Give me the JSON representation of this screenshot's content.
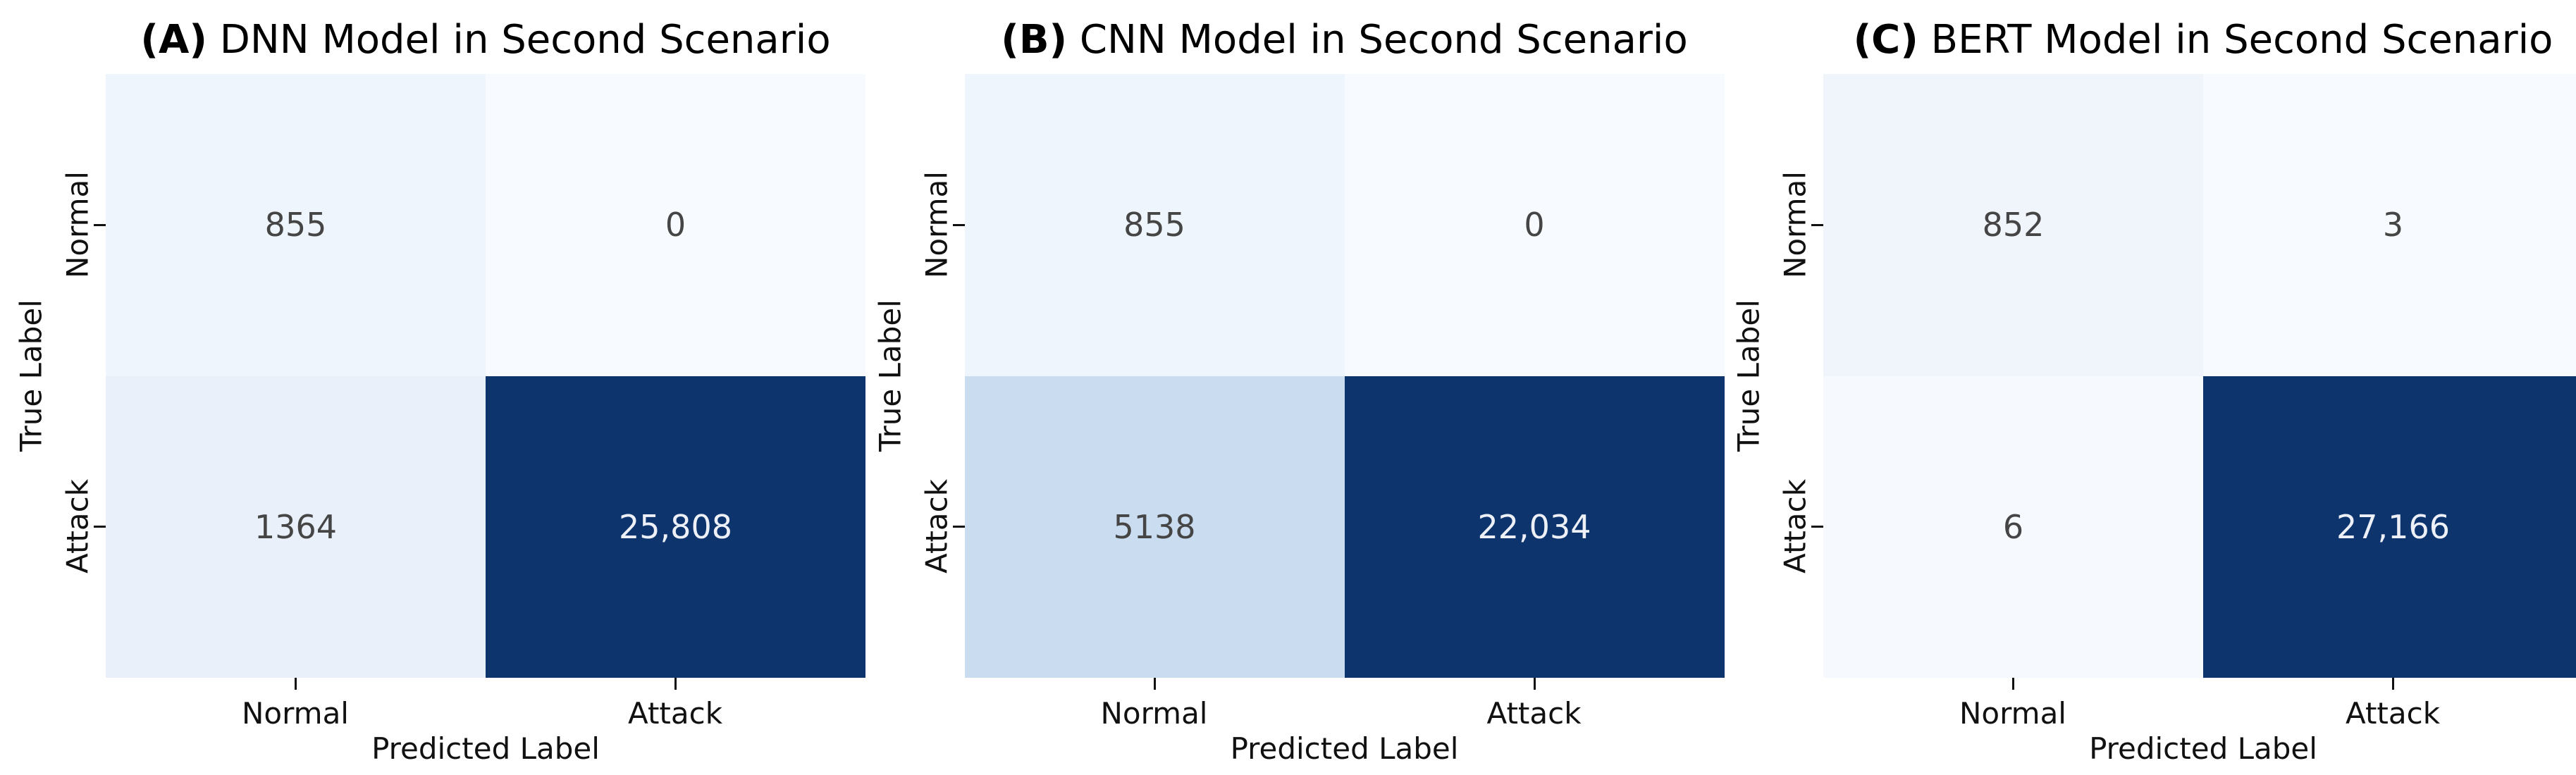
{
  "page": {
    "background": "#ffffff",
    "colormap": "Blues"
  },
  "charts": [
    {
      "title_prefix": "(A)",
      "title_rest": " DNN Model in Second Scenario",
      "ylabel": "True Label",
      "xlabel": "Predicted Label",
      "rows": [
        "Normal",
        "Attack"
      ],
      "cols": [
        "Normal",
        "Attack"
      ],
      "cells": [
        {
          "label": "855",
          "bg": "#eff5fc",
          "fg": "#454545"
        },
        {
          "label": "0",
          "bg": "#f7fbff",
          "fg": "#454545"
        },
        {
          "label": "1364",
          "bg": "#e9f0f9",
          "fg": "#454545"
        },
        {
          "label": "25,808",
          "bg": "#0e346e",
          "fg": "#edf1f7"
        }
      ]
    },
    {
      "title_prefix": "(B)",
      "title_rest": " CNN Model in Second Scenario",
      "ylabel": "True Label",
      "xlabel": "Predicted Label",
      "rows": [
        "Normal",
        "Attack"
      ],
      "cols": [
        "Normal",
        "Attack"
      ],
      "cells": [
        {
          "label": "855",
          "bg": "#eff5fc",
          "fg": "#454545"
        },
        {
          "label": "0",
          "bg": "#f7fbff",
          "fg": "#454545"
        },
        {
          "label": "5138",
          "bg": "#caddf0",
          "fg": "#454545"
        },
        {
          "label": "22,034",
          "bg": "#0e346e",
          "fg": "#edf1f7"
        }
      ]
    },
    {
      "title_prefix": "(C)",
      "title_rest": " BERT Model in Second Scenario",
      "ylabel": "True Label",
      "xlabel": "Predicted Label",
      "rows": [
        "Normal",
        "Attack"
      ],
      "cols": [
        "Normal",
        "Attack"
      ],
      "cells": [
        {
          "label": "852",
          "bg": "#f0f5fc",
          "fg": "#454545"
        },
        {
          "label": "3",
          "bg": "#f7fbff",
          "fg": "#454545"
        },
        {
          "label": "6",
          "bg": "#f6fafe",
          "fg": "#454545"
        },
        {
          "label": "27,166",
          "bg": "#0e346e",
          "fg": "#edf1f7"
        }
      ]
    }
  ],
  "chart_data": [
    {
      "type": "heatmap",
      "title": "(A) DNN Model in Second Scenario",
      "xlabel": "Predicted Label",
      "ylabel": "True Label",
      "x_categories": [
        "Normal",
        "Attack"
      ],
      "y_categories": [
        "Normal",
        "Attack"
      ],
      "matrix": [
        [
          855,
          0
        ],
        [
          1364,
          25808
        ]
      ],
      "cell_labels": [
        [
          "855",
          "0"
        ],
        [
          "1364",
          "25,808"
        ]
      ],
      "colormap": "Blues",
      "vmin": 0,
      "vmax": 25808,
      "legend": "none",
      "grid": false
    },
    {
      "type": "heatmap",
      "title": "(B) CNN Model in Second Scenario",
      "xlabel": "Predicted Label",
      "ylabel": "True Label",
      "x_categories": [
        "Normal",
        "Attack"
      ],
      "y_categories": [
        "Normal",
        "Attack"
      ],
      "matrix": [
        [
          855,
          0
        ],
        [
          5138,
          22034
        ]
      ],
      "cell_labels": [
        [
          "855",
          "0"
        ],
        [
          "5138",
          "22,034"
        ]
      ],
      "colormap": "Blues",
      "vmin": 0,
      "vmax": 22034,
      "legend": "none",
      "grid": false
    },
    {
      "type": "heatmap",
      "title": "(C) BERT Model in Second Scenario",
      "xlabel": "Predicted Label",
      "ylabel": "True Label",
      "x_categories": [
        "Normal",
        "Attack"
      ],
      "y_categories": [
        "Normal",
        "Attack"
      ],
      "matrix": [
        [
          852,
          3
        ],
        [
          6,
          27166
        ]
      ],
      "cell_labels": [
        [
          "852",
          "3"
        ],
        [
          "6",
          "27,166"
        ]
      ],
      "colormap": "Blues",
      "vmin": 0,
      "vmax": 27166,
      "legend": "none",
      "grid": false
    }
  ]
}
